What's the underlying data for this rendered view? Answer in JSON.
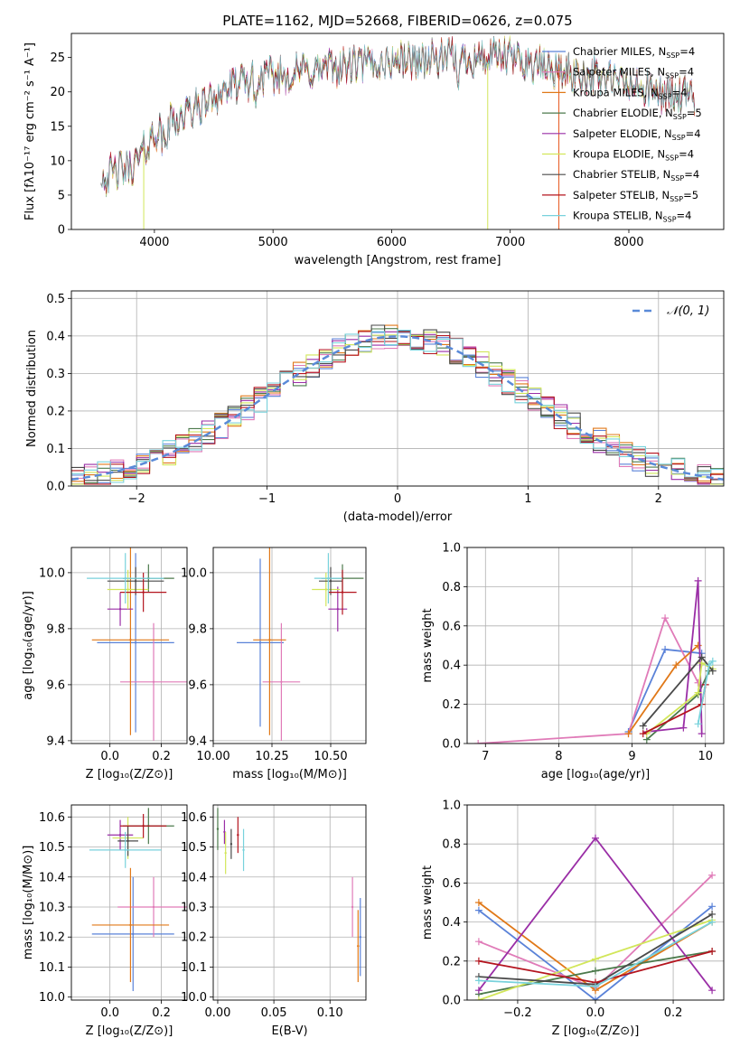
{
  "title": "PLATE=1162, MJD=52668, FIBERID=0626, z=0.075",
  "colors": {
    "Chabrier MILES": "#5a82d8",
    "Salpeter MILES": "#e07bb8",
    "Kroupa MILES": "#e07818",
    "Chabrier ELODIE": "#4c7a4c",
    "Salpeter ELODIE": "#9a2ea6",
    "Kroupa ELODIE": "#d2e65a",
    "Chabrier STELIB": "#4a4a4a",
    "Salpeter STELIB": "#b4141e",
    "Kroupa STELIB": "#78d2dc"
  },
  "chart_data": [
    {
      "id": "spectrum",
      "type": "line",
      "xlabel": "wavelength [Angstrom, rest frame]",
      "ylabel": "Flux [fλ10⁻¹⁷ erg cm⁻² s⁻¹ A⁻¹]",
      "xlim": [
        3300,
        8800
      ],
      "ylim": [
        0,
        28.5
      ],
      "xticks": [
        4000,
        5000,
        6000,
        7000,
        8000
      ],
      "yticks": [
        0,
        5,
        10,
        15,
        20,
        25
      ],
      "legend_position": "right",
      "legend": [
        {
          "label": "Chabrier MILES, N",
          "sub": "SSP",
          "tail": "=4"
        },
        {
          "label": "Salpeter MILES, N",
          "sub": "SSP",
          "tail": "=4"
        },
        {
          "label": "Kroupa MILES, N",
          "sub": "SSP",
          "tail": "=4"
        },
        {
          "label": "Chabrier ELODIE, N",
          "sub": "SSP",
          "tail": "=5"
        },
        {
          "label": "Salpeter ELODIE, N",
          "sub": "SSP",
          "tail": "=4"
        },
        {
          "label": "Kroupa ELODIE, N",
          "sub": "SSP",
          "tail": "=4"
        },
        {
          "label": "Chabrier STELIB, N",
          "sub": "SSP",
          "tail": "=4"
        },
        {
          "label": "Salpeter STELIB, N",
          "sub": "SSP",
          "tail": "=5"
        },
        {
          "label": "Kroupa STELIB, N",
          "sub": "SSP",
          "tail": "=4"
        }
      ],
      "continuum": {
        "x": [
          3550,
          3700,
          3850,
          3900,
          4000,
          4100,
          4300,
          4500,
          4700,
          4900,
          5100,
          5300,
          5500,
          5800,
          6000,
          6300,
          6600,
          7000,
          7400,
          7800,
          8200,
          8550
        ],
        "y": [
          7.5,
          8.5,
          9.5,
          11,
          14,
          15.5,
          17,
          19.5,
          21,
          22,
          22.5,
          23,
          23.5,
          24,
          24.5,
          24.8,
          25,
          25,
          23,
          22,
          20,
          19
        ]
      }
    },
    {
      "id": "residuals",
      "type": "line",
      "xlabel": "(data-model)/error",
      "ylabel": "Normed distribution",
      "xlim": [
        -2.5,
        2.5
      ],
      "ylim": [
        0,
        0.52
      ],
      "xticks": [
        -2,
        -1,
        0,
        1,
        2
      ],
      "xtick_labels": [
        "−2",
        "−1",
        "0",
        "1",
        "2"
      ],
      "yticks": [
        0.0,
        0.1,
        0.2,
        0.3,
        0.4,
        0.5
      ],
      "ytick_labels": [
        "0.0",
        "0.1",
        "0.2",
        "0.3",
        "0.4",
        "0.5"
      ],
      "grid": true,
      "legend_position": "top-right",
      "reference_label": "𝒩(0, 1)"
    },
    {
      "id": "age-vs-z",
      "type": "scatter",
      "xlabel": "Z [log₁₀(Z/Z⊙)]",
      "ylabel": "age  [log₁₀(age/yr)]",
      "xlim": [
        -0.15,
        0.3
      ],
      "ylim": [
        9.39,
        10.09
      ],
      "xticks": [
        0.0,
        0.2
      ],
      "xtick_labels": [
        "0.0",
        "0.2"
      ],
      "yticks": [
        9.4,
        9.6,
        9.8,
        10.0
      ],
      "ytick_labels": [
        "9.4",
        "9.6",
        "9.8",
        "10.0"
      ],
      "grid": true,
      "points": [
        {
          "s": "Chabrier MILES",
          "x": 0.1,
          "xerr": 0.15,
          "y": 9.75,
          "yerr": 0.32
        },
        {
          "s": "Salpeter MILES",
          "x": 0.17,
          "xerr": 0.13,
          "y": 9.61,
          "yerr": 0.21
        },
        {
          "s": "Kroupa MILES",
          "x": 0.08,
          "xerr": 0.15,
          "y": 9.76,
          "yerr": 0.34
        },
        {
          "s": "Chabrier ELODIE",
          "x": 0.15,
          "xerr": 0.1,
          "y": 9.98,
          "yerr": 0.05
        },
        {
          "s": "Salpeter ELODIE",
          "x": 0.04,
          "xerr": 0.05,
          "y": 9.87,
          "yerr": 0.06
        },
        {
          "s": "Kroupa ELODIE",
          "x": 0.07,
          "xerr": 0.08,
          "y": 9.94,
          "yerr": 0.07
        },
        {
          "s": "Chabrier STELIB",
          "x": 0.1,
          "xerr": 0.11,
          "y": 9.97,
          "yerr": 0.05
        },
        {
          "s": "Salpeter STELIB",
          "x": 0.13,
          "xerr": 0.09,
          "y": 9.93,
          "yerr": 0.07
        },
        {
          "s": "Kroupa STELIB",
          "x": 0.06,
          "xerr": 0.15,
          "y": 9.98,
          "yerr": 0.09
        }
      ]
    },
    {
      "id": "age-vs-mass",
      "type": "scatter",
      "xlabel": "mass [log₁₀(M/M⊙)]",
      "ylabel": "",
      "xlim": [
        10.0,
        10.65
      ],
      "ylim": [
        9.39,
        10.09
      ],
      "xticks": [
        10.0,
        10.25,
        10.5
      ],
      "xtick_labels": [
        "10.00",
        "10.25",
        "10.50"
      ],
      "yticks": [
        9.4,
        9.6,
        9.8,
        10.0
      ],
      "ytick_labels": [
        "9.4",
        "9.6",
        "9.8",
        "10.0"
      ],
      "grid": true,
      "points": [
        {
          "s": "Chabrier MILES",
          "x": 10.2,
          "xerr": 0.1,
          "y": 9.75,
          "yerr": 0.3
        },
        {
          "s": "Salpeter MILES",
          "x": 10.29,
          "xerr": 0.08,
          "y": 9.61,
          "yerr": 0.21
        },
        {
          "s": "Kroupa MILES",
          "x": 10.24,
          "xerr": 0.07,
          "y": 9.76,
          "yerr": 0.34
        },
        {
          "s": "Chabrier ELODIE",
          "x": 10.55,
          "xerr": 0.09,
          "y": 9.98,
          "yerr": 0.05
        },
        {
          "s": "Salpeter ELODIE",
          "x": 10.53,
          "xerr": 0.04,
          "y": 9.87,
          "yerr": 0.08
        },
        {
          "s": "Kroupa ELODIE",
          "x": 10.48,
          "xerr": 0.06,
          "y": 9.94,
          "yerr": 0.06
        },
        {
          "s": "Chabrier STELIB",
          "x": 10.5,
          "xerr": 0.05,
          "y": 9.97,
          "yerr": 0.05
        },
        {
          "s": "Salpeter STELIB",
          "x": 10.55,
          "xerr": 0.06,
          "y": 9.93,
          "yerr": 0.08
        },
        {
          "s": "Kroupa STELIB",
          "x": 10.49,
          "xerr": 0.06,
          "y": 9.98,
          "yerr": 0.09
        }
      ]
    },
    {
      "id": "weight-vs-age",
      "type": "line",
      "xlabel": "age  [log₁₀(age/yr)]",
      "ylabel": "mass weight",
      "xlim": [
        6.75,
        10.25
      ],
      "ylim": [
        0,
        1.0
      ],
      "xticks": [
        7,
        8,
        9,
        10
      ],
      "xtick_labels": [
        "7",
        "8",
        "9",
        "10"
      ],
      "yticks": [
        0.0,
        0.2,
        0.4,
        0.6,
        0.8,
        1.0
      ],
      "ytick_labels": [
        "0.0",
        "0.2",
        "0.4",
        "0.6",
        "0.8",
        "1.0"
      ],
      "grid": true,
      "series": [
        {
          "s": "Chabrier MILES",
          "x": [
            8.95,
            9.45,
            9.95
          ],
          "y": [
            0.06,
            0.48,
            0.46
          ]
        },
        {
          "s": "Salpeter MILES",
          "x": [
            6.9,
            8.95,
            9.45,
            9.9
          ],
          "y": [
            0.0,
            0.05,
            0.64,
            0.31
          ]
        },
        {
          "s": "Kroupa MILES",
          "x": [
            8.95,
            9.6,
            9.9
          ],
          "y": [
            0.05,
            0.4,
            0.5
          ]
        },
        {
          "s": "Chabrier ELODIE",
          "x": [
            9.2,
            9.9,
            10.05
          ],
          "y": [
            0.02,
            0.25,
            0.37
          ]
        },
        {
          "s": "Salpeter ELODIE",
          "x": [
            9.2,
            9.7,
            9.9,
            9.95
          ],
          "y": [
            0.06,
            0.08,
            0.83,
            0.05
          ]
        },
        {
          "s": "Kroupa ELODIE",
          "x": [
            9.2,
            9.9,
            9.95,
            10.1
          ],
          "y": [
            0.05,
            0.26,
            0.41,
            0.38
          ]
        },
        {
          "s": "Chabrier STELIB",
          "x": [
            9.15,
            9.95,
            10.1
          ],
          "y": [
            0.09,
            0.44,
            0.37
          ]
        },
        {
          "s": "Salpeter STELIB",
          "x": [
            9.15,
            9.95,
            10.0
          ],
          "y": [
            0.05,
            0.2,
            0.3
          ]
        },
        {
          "s": "Kroupa STELIB",
          "x": [
            9.9,
            10.05,
            10.1
          ],
          "y": [
            0.1,
            0.4,
            0.42
          ]
        }
      ]
    },
    {
      "id": "mass-vs-z",
      "type": "scatter",
      "xlabel": "Z [log₁₀(Z/Z⊙)]",
      "ylabel": "mass [log₁₀(M/M⊙)]",
      "xlim": [
        -0.15,
        0.3
      ],
      "ylim": [
        9.99,
        10.64
      ],
      "xticks": [
        0.0,
        0.2
      ],
      "xtick_labels": [
        "0.0",
        "0.2"
      ],
      "yticks": [
        10.0,
        10.1,
        10.2,
        10.3,
        10.4,
        10.5,
        10.6
      ],
      "ytick_labels": [
        "10.0",
        "10.1",
        "10.2",
        "10.3",
        "10.4",
        "10.5",
        "10.6"
      ],
      "grid": true,
      "points": [
        {
          "s": "Chabrier MILES",
          "x": 0.09,
          "xerr": 0.16,
          "y": 10.21,
          "yerr": 0.19
        },
        {
          "s": "Salpeter MILES",
          "x": 0.17,
          "xerr": 0.14,
          "y": 10.3,
          "yerr": 0.1
        },
        {
          "s": "Kroupa MILES",
          "x": 0.08,
          "xerr": 0.15,
          "y": 10.24,
          "yerr": 0.19
        },
        {
          "s": "Chabrier ELODIE",
          "x": 0.15,
          "xerr": 0.1,
          "y": 10.57,
          "yerr": 0.06
        },
        {
          "s": "Salpeter ELODIE",
          "x": 0.04,
          "xerr": 0.05,
          "y": 10.54,
          "yerr": 0.05
        },
        {
          "s": "Kroupa ELODIE",
          "x": 0.07,
          "xerr": 0.06,
          "y": 10.53,
          "yerr": 0.07
        },
        {
          "s": "Chabrier STELIB",
          "x": 0.07,
          "xerr": 0.04,
          "y": 10.52,
          "yerr": 0.05
        },
        {
          "s": "Salpeter STELIB",
          "x": 0.13,
          "xerr": 0.09,
          "y": 10.57,
          "yerr": 0.04
        },
        {
          "s": "Kroupa STELIB",
          "x": 0.06,
          "xerr": 0.14,
          "y": 10.49,
          "yerr": 0.06
        }
      ]
    },
    {
      "id": "mass-vs-ebv",
      "type": "scatter",
      "xlabel": "E(B-V)",
      "ylabel": "",
      "xlim": [
        -0.004,
        0.132
      ],
      "ylim": [
        9.99,
        10.64
      ],
      "xticks": [
        0.0,
        0.05,
        0.1
      ],
      "xtick_labels": [
        "0.00",
        "0.05",
        "0.10"
      ],
      "yticks": [
        10.0,
        10.1,
        10.2,
        10.3,
        10.4,
        10.5,
        10.6
      ],
      "ytick_labels": [
        "10.0",
        "10.1",
        "10.2",
        "10.3",
        "10.4",
        "10.5",
        "10.6"
      ],
      "grid": true,
      "points": [
        {
          "s": "Chabrier MILES",
          "x": 0.127,
          "y": 10.2,
          "yerr": 0.13
        },
        {
          "s": "Salpeter MILES",
          "x": 0.12,
          "y": 10.3,
          "yerr": 0.1
        },
        {
          "s": "Kroupa MILES",
          "x": 0.125,
          "y": 10.17,
          "yerr": 0.12
        },
        {
          "s": "Chabrier ELODIE",
          "x": 0.0,
          "y": 10.56,
          "yerr": 0.07
        },
        {
          "s": "Salpeter ELODIE",
          "x": 0.006,
          "y": 10.55,
          "yerr": 0.04
        },
        {
          "s": "Kroupa ELODIE",
          "x": 0.007,
          "y": 10.48,
          "yerr": 0.07
        },
        {
          "s": "Chabrier STELIB",
          "x": 0.012,
          "y": 10.51,
          "yerr": 0.05
        },
        {
          "s": "Salpeter STELIB",
          "x": 0.018,
          "y": 10.54,
          "yerr": 0.06
        },
        {
          "s": "Kroupa STELIB",
          "x": 0.023,
          "y": 10.49,
          "yerr": 0.07
        }
      ]
    },
    {
      "id": "weight-vs-z",
      "type": "line",
      "xlabel": "Z [log₁₀(Z/Z⊙)]",
      "ylabel": "mass weight",
      "xlim": [
        -0.33,
        0.33
      ],
      "ylim": [
        0,
        1.0
      ],
      "xticks": [
        -0.2,
        0.0,
        0.2
      ],
      "xtick_labels": [
        "−0.2",
        "0.0",
        "0.2"
      ],
      "yticks": [
        0.0,
        0.2,
        0.4,
        0.6,
        0.8,
        1.0
      ],
      "ytick_labels": [
        "0.0",
        "0.2",
        "0.4",
        "0.6",
        "0.8",
        "1.0"
      ],
      "grid": true,
      "series": [
        {
          "s": "Chabrier MILES",
          "x": [
            -0.3,
            0.0,
            0.3
          ],
          "y": [
            0.46,
            0.0,
            0.48
          ]
        },
        {
          "s": "Salpeter MILES",
          "x": [
            -0.3,
            0.0,
            0.3
          ],
          "y": [
            0.3,
            0.06,
            0.64
          ]
        },
        {
          "s": "Kroupa MILES",
          "x": [
            -0.3,
            0.0,
            0.3
          ],
          "y": [
            0.5,
            0.05,
            0.4
          ]
        },
        {
          "s": "Chabrier ELODIE",
          "x": [
            -0.3,
            0.0,
            0.3
          ],
          "y": [
            0.03,
            0.15,
            0.25
          ]
        },
        {
          "s": "Salpeter ELODIE",
          "x": [
            -0.3,
            0.0,
            0.3
          ],
          "y": [
            0.05,
            0.83,
            0.05
          ]
        },
        {
          "s": "Kroupa ELODIE",
          "x": [
            -0.3,
            0.0,
            0.3
          ],
          "y": [
            0.0,
            0.21,
            0.41
          ]
        },
        {
          "s": "Chabrier STELIB",
          "x": [
            -0.3,
            0.0,
            0.3
          ],
          "y": [
            0.12,
            0.08,
            0.44
          ]
        },
        {
          "s": "Salpeter STELIB",
          "x": [
            -0.3,
            0.0,
            0.3
          ],
          "y": [
            0.2,
            0.09,
            0.25
          ]
        },
        {
          "s": "Kroupa STELIB",
          "x": [
            -0.3,
            0.0,
            0.3
          ],
          "y": [
            0.1,
            0.07,
            0.4
          ]
        }
      ]
    }
  ]
}
